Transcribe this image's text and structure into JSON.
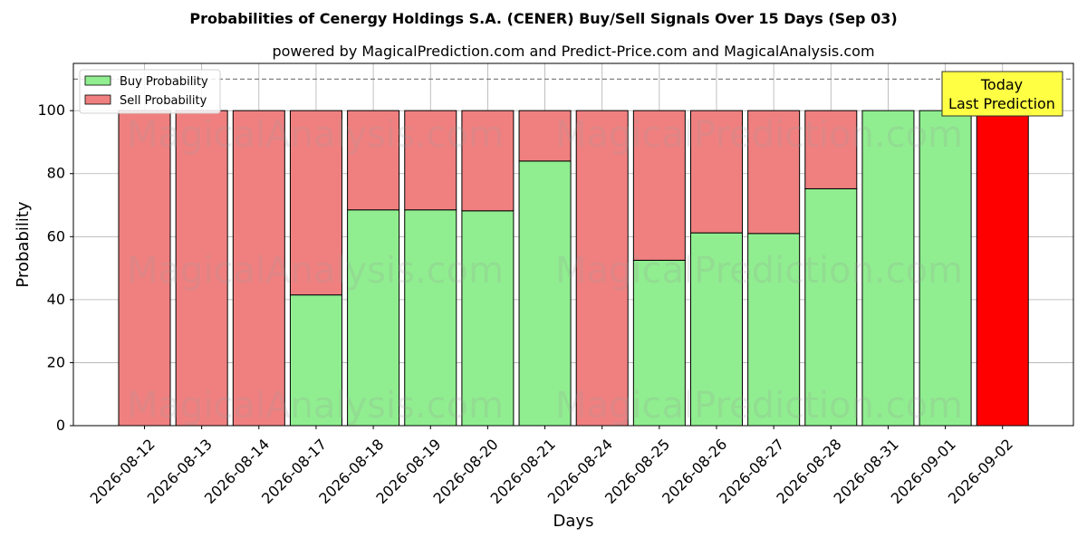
{
  "chart_data": {
    "type": "bar",
    "stacked": true,
    "title": "Probabilities of Cenergy Holdings S.A. (CENER) Buy/Sell Signals Over 15 Days (Sep 03)",
    "subtitle": "powered by MagicalPrediction.com and Predict-Price.com and MagicalAnalysis.com",
    "xlabel": "Days",
    "ylabel": "Probability",
    "ylim": [
      0,
      115
    ],
    "yticks": [
      0,
      20,
      40,
      60,
      80,
      100
    ],
    "grid": true,
    "legend_position": "top-left",
    "reference_line": 110,
    "categories": [
      "2026-08-12",
      "2026-08-13",
      "2026-08-14",
      "2026-08-17",
      "2026-08-18",
      "2026-08-19",
      "2026-08-20",
      "2026-08-21",
      "2026-08-24",
      "2026-08-25",
      "2026-08-26",
      "2026-08-27",
      "2026-08-28",
      "2026-08-31",
      "2026-09-01",
      "2026-09-02"
    ],
    "series": [
      {
        "name": "Buy Probability",
        "color": "#90EE90",
        "values": [
          0,
          0,
          0,
          41.5,
          68.5,
          68.5,
          68.2,
          84,
          0,
          52.5,
          61.2,
          61,
          75.2,
          100,
          100,
          0
        ]
      },
      {
        "name": "Sell Probability",
        "color": "#F08080",
        "values": [
          100,
          100,
          100,
          58.5,
          31.5,
          31.5,
          31.8,
          16,
          100,
          47.5,
          38.8,
          39,
          24.8,
          0,
          0,
          0
        ]
      }
    ],
    "highlight": {
      "category": "2026-09-02",
      "value": 100,
      "color": "#FF0000"
    },
    "annotation": {
      "line1": "Today",
      "line2": "Last Prediction",
      "color": "#FFFF44"
    },
    "watermarks": [
      "MagicalAnalysis.com",
      "MagicalPrediction.com"
    ]
  }
}
